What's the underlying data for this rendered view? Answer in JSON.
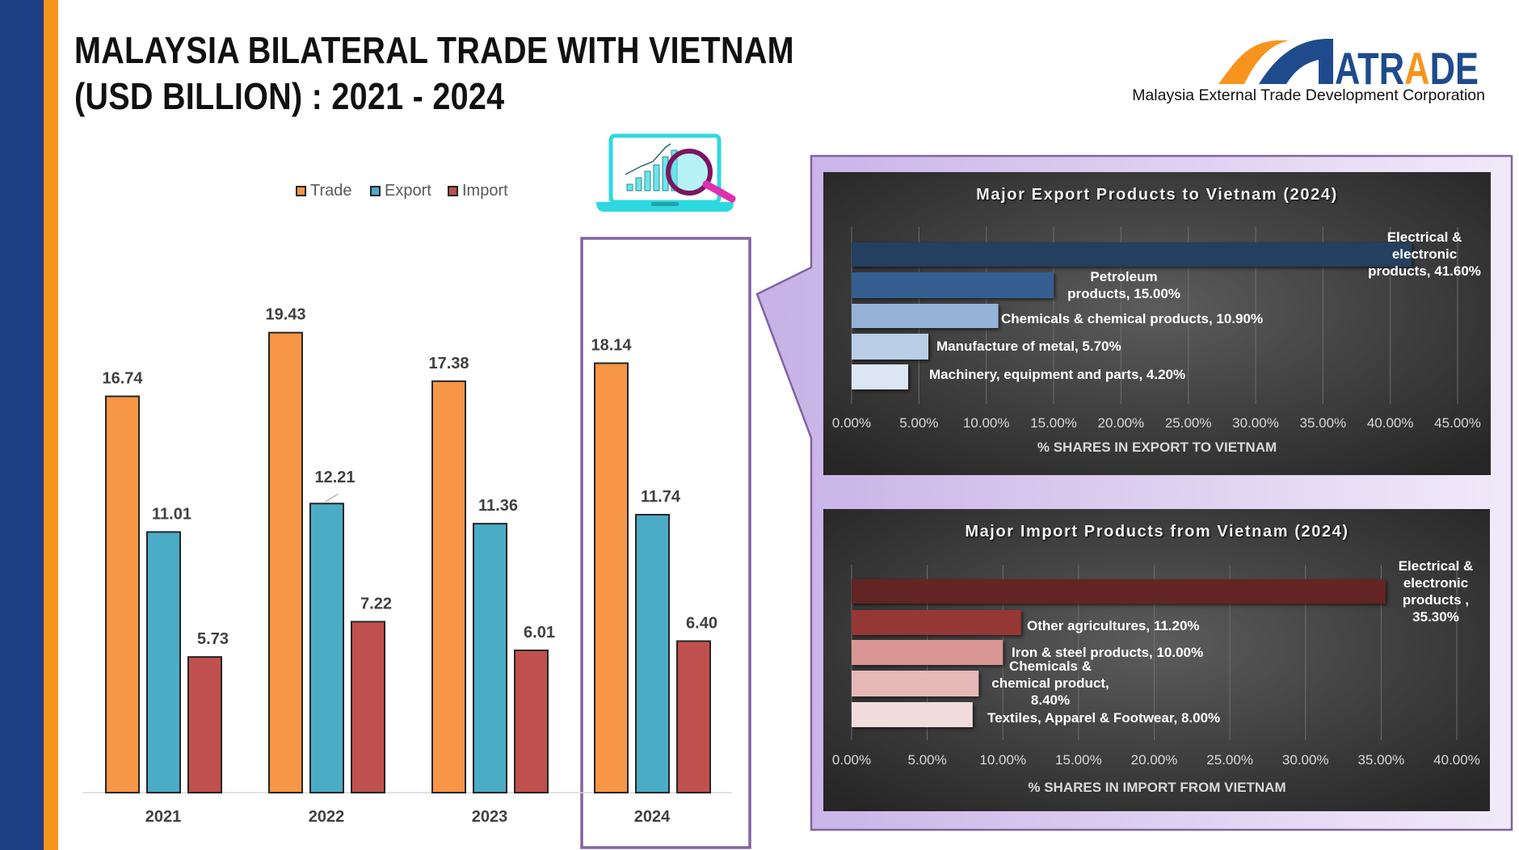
{
  "header": {
    "title_line1": "MALAYSIA BILATERAL TRADE WITH VIETNAM",
    "title_line2": "(USD BILLION) : 2021 - 2024",
    "logo_text": "MATRADE",
    "logo_subtitle": "Malaysia External Trade Development Corporation"
  },
  "icons": {
    "laptop": "laptop-chart-magnifier-icon"
  },
  "colors": {
    "trade": "#f79646",
    "export": "#4bacc6",
    "import": "#c0504d",
    "highlight": "#8064a2",
    "left_band": "#1f3f86",
    "accent_band": "#f7941d",
    "export_bars": [
      "#243f60",
      "#355f91",
      "#95b3d7",
      "#b9cde5",
      "#dce6f2"
    ],
    "import_bars": [
      "#632523",
      "#953735",
      "#d99694",
      "#e6b9b8",
      "#f2dcdb"
    ]
  },
  "chart_data": [
    {
      "type": "bar",
      "categories": [
        "2021",
        "2022",
        "2023",
        "2024"
      ],
      "series": [
        {
          "name": "Trade",
          "values": [
            16.74,
            19.43,
            17.38,
            18.14
          ]
        },
        {
          "name": "Export",
          "values": [
            11.01,
            12.21,
            11.36,
            11.74
          ]
        },
        {
          "name": "Import",
          "values": [
            5.73,
            7.22,
            6.01,
            6.4
          ]
        }
      ],
      "value_labels": [
        [
          "16.74",
          "19.43",
          "17.38",
          "18.14"
        ],
        [
          "11.01",
          "12.21",
          "11.36",
          "11.74"
        ],
        [
          "5.73",
          "7.22",
          "6.01",
          "6.40"
        ]
      ],
      "ylim": [
        0,
        20
      ],
      "legend": "top",
      "grid": false,
      "highlighted_category": "2024"
    },
    {
      "type": "bar",
      "orientation": "horizontal",
      "title": "Major Export Products to Vietnam (2024)",
      "xlabel": "% SHARES IN EXPORT TO VIETNAM",
      "xlim": [
        0,
        45
      ],
      "xticks": [
        "0.00%",
        "5.00%",
        "10.00%",
        "15.00%",
        "20.00%",
        "25.00%",
        "30.00%",
        "35.00%",
        "40.00%",
        "45.00%"
      ],
      "grid": true,
      "categories": [
        "Electrical & electronic products",
        "Petroleum products",
        "Chemicals & chemical products",
        "Manufacture of metal",
        "Machinery, equipment and parts"
      ],
      "values": [
        41.6,
        15.0,
        10.9,
        5.7,
        4.2
      ],
      "labels": [
        [
          "Electrical &",
          "electronic",
          "products, 41.60%"
        ],
        [
          "Petroleum",
          "products, 15.00%"
        ],
        [
          "Chemicals & chemical products, 10.90%"
        ],
        [
          "Manufacture of metal, 5.70%"
        ],
        [
          "Machinery, equipment and parts, 4.20%"
        ]
      ]
    },
    {
      "type": "bar",
      "orientation": "horizontal",
      "title": "Major Import Products from Vietnam (2024)",
      "xlabel": "% SHARES IN IMPORT FROM VIETNAM",
      "xlim": [
        0,
        40
      ],
      "xticks": [
        "0.00%",
        "5.00%",
        "10.00%",
        "15.00%",
        "20.00%",
        "25.00%",
        "30.00%",
        "35.00%",
        "40.00%"
      ],
      "grid": true,
      "categories": [
        "Electrical & electronic products",
        "Other agricultures",
        "Iron & steel products",
        "Chemicals & chemical product",
        "Textiles, Apparel & Footwear"
      ],
      "values": [
        35.3,
        11.2,
        10.0,
        8.4,
        8.0
      ],
      "labels": [
        [
          "Electrical &",
          "electronic",
          "products ,",
          "35.30%"
        ],
        [
          "Other agricultures, 11.20%"
        ],
        [
          "Iron & steel products, 10.00%"
        ],
        [
          "Chemicals &",
          "chemical product,",
          "8.40%"
        ],
        [
          "Textiles, Apparel & Footwear, 8.00%"
        ]
      ]
    }
  ]
}
